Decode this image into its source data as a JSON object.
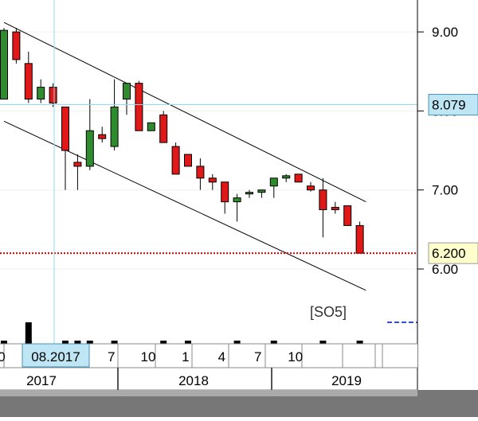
{
  "chart_data": {
    "type": "candlestick",
    "symbol_tag": "[SO5]",
    "y_axis": {
      "min": 5.5,
      "max": 9.4,
      "ticks": [
        "9.00",
        "8.00",
        "7.00",
        "6.00"
      ]
    },
    "crosshair": {
      "price_label": "8.079",
      "price": 8.079,
      "date_label": "08.2017"
    },
    "last_price": {
      "label": "6.200",
      "value": 6.2
    },
    "x_month_labels": [
      {
        "text": "10",
        "month_index": -0.5
      },
      {
        "text": "1",
        "month_index": 2.9
      },
      {
        "text": "4",
        "month_index": 5.85
      },
      {
        "text": "7",
        "month_index": 8.75
      },
      {
        "text": "10",
        "month_index": 11.75
      },
      {
        "text": "1",
        "month_index": 14.8
      },
      {
        "text": "4",
        "month_index": 17.75
      },
      {
        "text": "7",
        "month_index": 20.7
      },
      {
        "text": "10",
        "month_index": 23.75
      }
    ],
    "x_year_labels": [
      "2017",
      "2018",
      "2019"
    ],
    "candles": [
      {
        "month": "2017-01",
        "open": 8.15,
        "high": 9.05,
        "low": 8.15,
        "close": 9.02
      },
      {
        "month": "2017-02",
        "open": 9.0,
        "high": 9.05,
        "low": 8.6,
        "close": 8.65
      },
      {
        "month": "2017-03",
        "open": 8.6,
        "high": 8.75,
        "low": 8.1,
        "close": 8.15
      },
      {
        "month": "2017-04",
        "open": 8.15,
        "high": 8.4,
        "low": 8.1,
        "close": 8.3
      },
      {
        "month": "2017-05",
        "open": 8.3,
        "high": 8.35,
        "low": 8.05,
        "close": 8.1
      },
      {
        "month": "2017-06",
        "open": 8.05,
        "high": 8.05,
        "low": 7.0,
        "close": 7.5
      },
      {
        "month": "2017-07",
        "open": 7.35,
        "high": 7.45,
        "low": 7.0,
        "close": 7.3
      },
      {
        "month": "2017-08",
        "open": 7.3,
        "high": 8.15,
        "low": 7.25,
        "close": 7.75
      },
      {
        "month": "2017-09",
        "open": 7.7,
        "high": 7.8,
        "low": 7.6,
        "close": 7.65
      },
      {
        "month": "2017-10",
        "open": 7.55,
        "high": 8.4,
        "low": 7.5,
        "close": 8.05
      },
      {
        "month": "2017-11",
        "open": 8.15,
        "high": 8.35,
        "low": 7.95,
        "close": 8.35
      },
      {
        "month": "2017-12",
        "open": 8.35,
        "high": 8.38,
        "low": 7.75,
        "close": 7.75
      },
      {
        "month": "2018-01",
        "open": 7.75,
        "high": 7.85,
        "low": 7.75,
        "close": 7.85
      },
      {
        "month": "2018-02",
        "open": 7.95,
        "high": 8.0,
        "low": 7.6,
        "close": 7.6
      },
      {
        "month": "2018-03",
        "open": 7.55,
        "high": 7.6,
        "low": 7.2,
        "close": 7.2
      },
      {
        "month": "2018-04",
        "open": 7.45,
        "high": 7.45,
        "low": 7.3,
        "close": 7.3
      },
      {
        "month": "2018-05",
        "open": 7.3,
        "high": 7.4,
        "low": 7.0,
        "close": 7.15
      },
      {
        "month": "2018-06",
        "open": 7.15,
        "high": 7.2,
        "low": 7.0,
        "close": 7.1
      },
      {
        "month": "2018-07",
        "open": 7.1,
        "high": 7.1,
        "low": 6.7,
        "close": 6.85
      },
      {
        "month": "2018-08",
        "open": 6.85,
        "high": 6.95,
        "low": 6.6,
        "close": 6.9
      },
      {
        "month": "2018-09",
        "open": 6.95,
        "high": 7.0,
        "low": 6.9,
        "close": 6.97
      },
      {
        "month": "2018-10",
        "open": 6.97,
        "high": 7.0,
        "low": 6.9,
        "close": 7.0
      },
      {
        "month": "2018-11",
        "open": 7.05,
        "high": 7.15,
        "low": 6.9,
        "close": 7.15
      },
      {
        "month": "2018-12",
        "open": 7.15,
        "high": 7.2,
        "low": 7.1,
        "close": 7.18
      },
      {
        "month": "2019-01",
        "open": 7.2,
        "high": 7.2,
        "low": 7.1,
        "close": 7.1
      },
      {
        "month": "2019-02",
        "open": 7.05,
        "high": 7.1,
        "low": 6.98,
        "close": 7.0
      },
      {
        "month": "2019-03",
        "open": 7.0,
        "high": 7.15,
        "low": 6.4,
        "close": 6.75
      },
      {
        "month": "2019-04",
        "open": 6.78,
        "high": 6.85,
        "low": 6.7,
        "close": 6.75
      },
      {
        "month": "2019-05",
        "open": 6.8,
        "high": 6.8,
        "low": 6.55,
        "close": 6.55
      },
      {
        "month": "2019-06",
        "open": 6.55,
        "high": 6.6,
        "low": 6.2,
        "close": 6.2
      }
    ],
    "channel_upper": [
      {
        "month_index": 0,
        "price": 9.12
      },
      {
        "month_index": 29.5,
        "price": 6.85
      }
    ],
    "channel_lower": [
      {
        "month_index": 0,
        "price": 7.87
      },
      {
        "month_index": 29.5,
        "price": 5.73
      }
    ],
    "volume_month_indices": [
      0,
      2,
      5,
      6,
      7,
      9,
      13,
      15,
      19,
      22,
      26,
      29
    ],
    "colors": {
      "up": "#2e8b2e",
      "down": "#e01818",
      "outline": "#000000",
      "crosshair": "#8edcf0",
      "price_line": "#e00000",
      "channel": "#000000",
      "label_box": "#ffffcc",
      "crosshair_box": "#bfe6f5",
      "bottom_bar": "#777777"
    }
  }
}
